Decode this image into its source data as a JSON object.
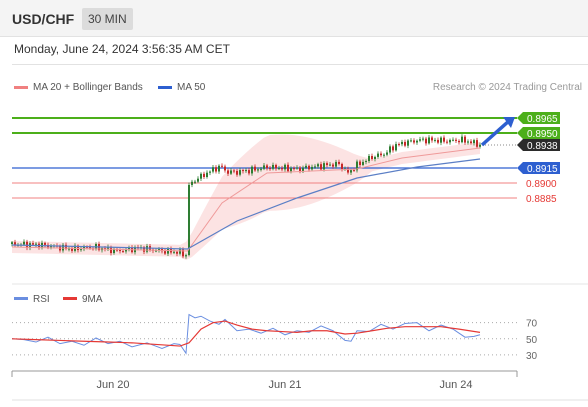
{
  "header": {
    "symbol": "USD/CHF",
    "timeframe": "30 MIN"
  },
  "datetime": "Monday, June 24, 2024 3:56:35 AM CET",
  "watermark": "Research © 2024 Trading Central",
  "colors": {
    "up": "#2e7d32",
    "down": "#c62828",
    "resistance": "#4caf1a",
    "pivot": "#2d5fd0",
    "support": "#f08080",
    "ma20": "#ef9a9a",
    "ma50": "#5b7fc6",
    "band_fill": "#fbdede",
    "rsi": "#6a8ee0",
    "rsi_ma": "#e53935",
    "forecast_arrow": "#2d5fd0"
  },
  "chart_data": [
    {
      "type": "candlestick",
      "legend": [
        {
          "label": "MA 20 + Bollinger Bands",
          "color": "#f08080"
        },
        {
          "label": "MA 50",
          "color": "#2d5fd0"
        }
      ],
      "y_range": [
        0.8795,
        0.8985
      ],
      "x_labels": [
        "Jun 20",
        "Jun 21",
        "Jun 24"
      ],
      "levels": [
        {
          "value": 0.8965,
          "label": "0.8965",
          "kind": "resistance"
        },
        {
          "value": 0.895,
          "label": "0.8950",
          "kind": "resistance"
        },
        {
          "value": 0.8938,
          "label": "0.8938",
          "kind": "last"
        },
        {
          "value": 0.8915,
          "label": "0.8915",
          "kind": "pivot"
        },
        {
          "value": 0.89,
          "label": "0.8900",
          "kind": "support"
        },
        {
          "value": 0.8885,
          "label": "0.8885",
          "kind": "support"
        }
      ],
      "price_path": [
        [
          0,
          0.8839
        ],
        [
          20,
          0.8838
        ],
        [
          40,
          0.8834
        ],
        [
          55,
          0.8836
        ],
        [
          70,
          0.8832
        ],
        [
          85,
          0.8835
        ],
        [
          100,
          0.8832
        ],
        [
          110,
          0.8831
        ],
        [
          116,
          0.8828
        ],
        [
          117,
          0.8896
        ],
        [
          122,
          0.8903
        ],
        [
          130,
          0.891
        ],
        [
          136,
          0.8915
        ],
        [
          140,
          0.8916
        ],
        [
          143,
          0.8911
        ],
        [
          150,
          0.8911
        ],
        [
          160,
          0.8913
        ],
        [
          170,
          0.8916
        ],
        [
          180,
          0.8915
        ],
        [
          190,
          0.8914
        ],
        [
          200,
          0.8916
        ],
        [
          210,
          0.8918
        ],
        [
          218,
          0.8919
        ],
        [
          224,
          0.891
        ],
        [
          230,
          0.8918
        ],
        [
          240,
          0.8926
        ],
        [
          248,
          0.8929
        ],
        [
          256,
          0.8938
        ],
        [
          264,
          0.8941
        ],
        [
          272,
          0.8943
        ],
        [
          280,
          0.8943
        ],
        [
          290,
          0.8942
        ],
        [
          300,
          0.8943
        ],
        [
          308,
          0.894
        ],
        [
          312,
          0.8938
        ]
      ],
      "ma50_path": [
        [
          0,
          0.8838
        ],
        [
          60,
          0.8836
        ],
        [
          117,
          0.8834
        ],
        [
          150,
          0.8862
        ],
        [
          190,
          0.8885
        ],
        [
          230,
          0.8905
        ],
        [
          270,
          0.8916
        ],
        [
          312,
          0.8924
        ]
      ],
      "ma20_path": [
        [
          0,
          0.8836
        ],
        [
          60,
          0.8834
        ],
        [
          117,
          0.8832
        ],
        [
          140,
          0.888
        ],
        [
          170,
          0.891
        ],
        [
          230,
          0.8914
        ],
        [
          260,
          0.8925
        ],
        [
          312,
          0.8935
        ]
      ],
      "forecast": {
        "from": 0.8938,
        "to": 0.8965
      }
    },
    {
      "type": "line",
      "legend": [
        {
          "label": "RSI",
          "color": "#6a8ee0"
        },
        {
          "label": "9MA",
          "color": "#e53935"
        }
      ],
      "y_range": [
        20,
        82
      ],
      "y_ticks": [
        {
          "value": 70,
          "label": "70"
        },
        {
          "value": 50,
          "label": "50"
        },
        {
          "value": 30,
          "label": "30"
        }
      ],
      "series": [
        {
          "name": "RSI",
          "points": [
            [
              0,
              50
            ],
            [
              8,
              49
            ],
            [
              16,
              46
            ],
            [
              24,
              52
            ],
            [
              32,
              44
            ],
            [
              40,
              47
            ],
            [
              48,
              42
            ],
            [
              56,
              51
            ],
            [
              64,
              44
            ],
            [
              72,
              47
            ],
            [
              80,
              40
            ],
            [
              90,
              45
            ],
            [
              100,
              38
            ],
            [
              108,
              44
            ],
            [
              112,
              43
            ],
            [
              116,
              32
            ],
            [
              118,
              80
            ],
            [
              122,
              76
            ],
            [
              126,
              78
            ],
            [
              132,
              72
            ],
            [
              138,
              68
            ],
            [
              142,
              74
            ],
            [
              150,
              60
            ],
            [
              158,
              62
            ],
            [
              166,
              57
            ],
            [
              174,
              63
            ],
            [
              182,
              55
            ],
            [
              190,
              60
            ],
            [
              198,
              58
            ],
            [
              206,
              66
            ],
            [
              214,
              60
            ],
            [
              222,
              48
            ],
            [
              226,
              47
            ],
            [
              230,
              60
            ],
            [
              238,
              59
            ],
            [
              246,
              68
            ],
            [
              254,
              62
            ],
            [
              262,
              69
            ],
            [
              270,
              70
            ],
            [
              278,
              60
            ],
            [
              286,
              67
            ],
            [
              294,
              62
            ],
            [
              302,
              52
            ],
            [
              308,
              53
            ],
            [
              312,
              55
            ]
          ]
        },
        {
          "name": "9MA",
          "points": [
            [
              0,
              50
            ],
            [
              16,
              49
            ],
            [
              32,
              48
            ],
            [
              48,
              47
            ],
            [
              64,
              46
            ],
            [
              80,
              45
            ],
            [
              96,
              43
            ],
            [
              112,
              41
            ],
            [
              118,
              45
            ],
            [
              126,
              62
            ],
            [
              134,
              70
            ],
            [
              142,
              72
            ],
            [
              150,
              67
            ],
            [
              160,
              62
            ],
            [
              170,
              60
            ],
            [
              180,
              59
            ],
            [
              190,
              58
            ],
            [
              200,
              60
            ],
            [
              210,
              60
            ],
            [
              222,
              56
            ],
            [
              230,
              57
            ],
            [
              240,
              60
            ],
            [
              250,
              63
            ],
            [
              262,
              65
            ],
            [
              274,
              65
            ],
            [
              286,
              65
            ],
            [
              298,
              62
            ],
            [
              312,
              58
            ]
          ]
        }
      ]
    }
  ]
}
